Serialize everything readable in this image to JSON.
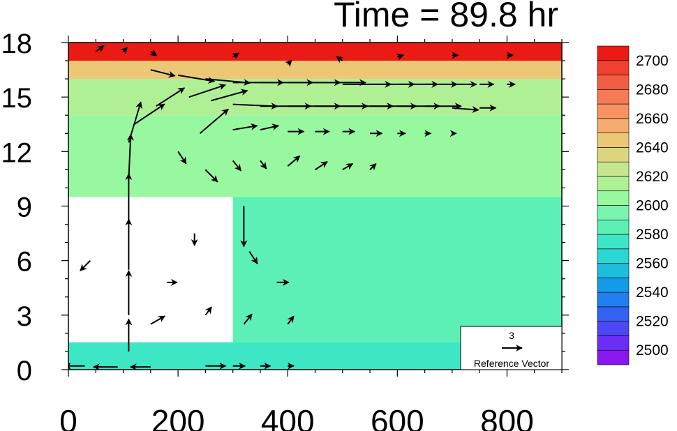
{
  "chart_data": {
    "type": "heatmap",
    "title": "Time = 89.8 hr",
    "xlabel": "",
    "ylabel": "",
    "xlim": [
      0,
      900
    ],
    "ylim": [
      0,
      18
    ],
    "x_ticks": [
      0,
      200,
      400,
      600,
      800
    ],
    "y_ticks": [
      0,
      3,
      6,
      9,
      12,
      15,
      18
    ],
    "grid": false,
    "colorbar": {
      "placement": "right",
      "levels": [
        2490,
        2500,
        2510,
        2520,
        2530,
        2540,
        2550,
        2560,
        2570,
        2580,
        2590,
        2600,
        2610,
        2620,
        2630,
        2640,
        2650,
        2660,
        2670,
        2680,
        2690,
        2700,
        2710
      ],
      "labels": [
        2500,
        2520,
        2540,
        2560,
        2580,
        2600,
        2620,
        2640,
        2660,
        2680,
        2700
      ],
      "colors": [
        "#8a16f0",
        "#6a2ef5",
        "#4d47f5",
        "#3362f0",
        "#1f7ff0",
        "#139be8",
        "#1fbddc",
        "#29d8d6",
        "#3de6c4",
        "#5cf0b6",
        "#7af5b0",
        "#98f8a0",
        "#b0f095",
        "#c5e68a",
        "#dcd57e",
        "#ecc776",
        "#f4ad6c",
        "#f79362",
        "#f57a56",
        "#f25e44",
        "#ef4030",
        "#ea1a14"
      ]
    },
    "field": {
      "description": "background shading of the filled contour field",
      "zones": [
        {
          "y_range": [
            0,
            1.5
          ],
          "x_range": [
            0,
            900
          ],
          "value": 2575
        },
        {
          "y_range": [
            1.5,
            9.5
          ],
          "x_range": [
            300,
            900
          ],
          "value": 2585
        },
        {
          "y_range": [
            9.5,
            14
          ],
          "x_range": [
            0,
            900
          ],
          "value": 2605
        },
        {
          "y_range": [
            14,
            16
          ],
          "x_range": [
            0,
            900
          ],
          "value": 2612
        },
        {
          "y_range": [
            16,
            17
          ],
          "x_range": [
            0,
            900
          ],
          "value": 2645
        },
        {
          "y_range": [
            17,
            18
          ],
          "x_range": [
            0,
            900
          ],
          "value": 2700
        }
      ]
    },
    "reference_vector": {
      "label": "Reference Vector",
      "magnitude": "3",
      "placement": "bottom-right"
    },
    "vectors": {
      "description": "wind vectors [x, y, u, w] in reference-vector units",
      "data": [
        [
          150,
          16.5,
          1.2,
          -0.3
        ],
        [
          200,
          16.2,
          1.8,
          -0.3
        ],
        [
          250,
          16.0,
          2.2,
          -0.2
        ],
        [
          300,
          15.8,
          2.5,
          0.0
        ],
        [
          350,
          15.8,
          2.6,
          0.0
        ],
        [
          400,
          15.8,
          2.6,
          0.0
        ],
        [
          450,
          15.8,
          2.5,
          0.0
        ],
        [
          500,
          15.7,
          2.4,
          0.0
        ],
        [
          550,
          15.7,
          2.2,
          0.0
        ],
        [
          600,
          15.7,
          2.0,
          0.0
        ],
        [
          650,
          15.7,
          1.6,
          0.0
        ],
        [
          700,
          15.7,
          1.2,
          0.0
        ],
        [
          750,
          15.7,
          0.7,
          0.0
        ],
        [
          800,
          15.7,
          0.4,
          0.0
        ],
        [
          300,
          14.6,
          2.2,
          -0.1
        ],
        [
          350,
          14.5,
          2.5,
          0.0
        ],
        [
          400,
          14.5,
          2.6,
          0.0
        ],
        [
          450,
          14.5,
          2.6,
          0.0
        ],
        [
          500,
          14.5,
          2.5,
          0.0
        ],
        [
          550,
          14.5,
          2.3,
          0.0
        ],
        [
          600,
          14.5,
          2.1,
          0.0
        ],
        [
          650,
          14.5,
          1.8,
          0.0
        ],
        [
          700,
          14.4,
          1.3,
          -0.1
        ],
        [
          750,
          14.4,
          0.8,
          0.0
        ],
        [
          120,
          13.5,
          1.5,
          1.0
        ],
        [
          160,
          14.5,
          1.4,
          0.9
        ],
        [
          220,
          15.0,
          1.8,
          0.6
        ],
        [
          260,
          14.8,
          1.8,
          0.5
        ],
        [
          240,
          13.0,
          1.4,
          1.2
        ],
        [
          300,
          13.2,
          1.2,
          0.2
        ],
        [
          350,
          13.2,
          0.9,
          0.2
        ],
        [
          400,
          13.1,
          0.8,
          0.0
        ],
        [
          450,
          13.1,
          0.7,
          0.0
        ],
        [
          500,
          13.1,
          0.6,
          0.0
        ],
        [
          550,
          13.0,
          0.6,
          0.0
        ],
        [
          600,
          13.0,
          0.4,
          0.0
        ],
        [
          650,
          13.0,
          0.3,
          0.0
        ],
        [
          700,
          13.0,
          0.2,
          0.0
        ],
        [
          110,
          12.5,
          0.6,
          2.0
        ],
        [
          110,
          10.5,
          0.1,
          2.2
        ],
        [
          110,
          8.0,
          0.0,
          2.5
        ],
        [
          110,
          5.5,
          0.0,
          2.5
        ],
        [
          110,
          3.0,
          0.0,
          2.2
        ],
        [
          110,
          1.0,
          0.0,
          1.6
        ],
        [
          200,
          12.0,
          0.4,
          -0.6
        ],
        [
          250,
          11.0,
          0.6,
          -0.6
        ],
        [
          300,
          11.5,
          0.4,
          -0.5
        ],
        [
          350,
          11.5,
          0.3,
          -0.4
        ],
        [
          400,
          11.2,
          0.6,
          0.5
        ],
        [
          450,
          11.0,
          0.6,
          0.4
        ],
        [
          500,
          11.0,
          0.5,
          0.3
        ],
        [
          550,
          11.0,
          0.3,
          0.3
        ],
        [
          320,
          9.0,
          0.0,
          -2.0
        ],
        [
          330,
          6.5,
          0.4,
          -0.6
        ],
        [
          230,
          7.5,
          0.0,
          -0.6
        ],
        [
          40,
          6.0,
          -0.5,
          -0.5
        ],
        [
          180,
          4.8,
          0.5,
          0.0
        ],
        [
          380,
          4.8,
          0.6,
          0.0
        ],
        [
          150,
          2.5,
          0.7,
          0.4
        ],
        [
          250,
          3.0,
          0.3,
          0.4
        ],
        [
          320,
          2.5,
          0.4,
          0.5
        ],
        [
          400,
          2.5,
          0.3,
          0.4
        ],
        [
          30,
          0.2,
          -1.0,
          0.0
        ],
        [
          90,
          0.15,
          -1.2,
          0.0
        ],
        [
          150,
          0.15,
          -1.0,
          0.0
        ],
        [
          250,
          0.2,
          1.0,
          0.0
        ],
        [
          300,
          0.2,
          0.6,
          0.0
        ],
        [
          350,
          0.2,
          0.5,
          0.0
        ],
        [
          400,
          0.2,
          0.3,
          0.0
        ],
        [
          50,
          17.5,
          0.4,
          0.3
        ],
        [
          100,
          17.5,
          0.2,
          0.2
        ],
        [
          150,
          17.5,
          0.3,
          -0.2
        ],
        [
          300,
          17.2,
          0.3,
          0.2
        ],
        [
          400,
          16.8,
          0.2,
          0.2
        ],
        [
          500,
          17.0,
          -0.3,
          0.2
        ],
        [
          600,
          17.2,
          0.3,
          0.1
        ],
        [
          700,
          17.3,
          0.3,
          0.0
        ],
        [
          800,
          17.3,
          0.3,
          0.0
        ]
      ]
    }
  }
}
